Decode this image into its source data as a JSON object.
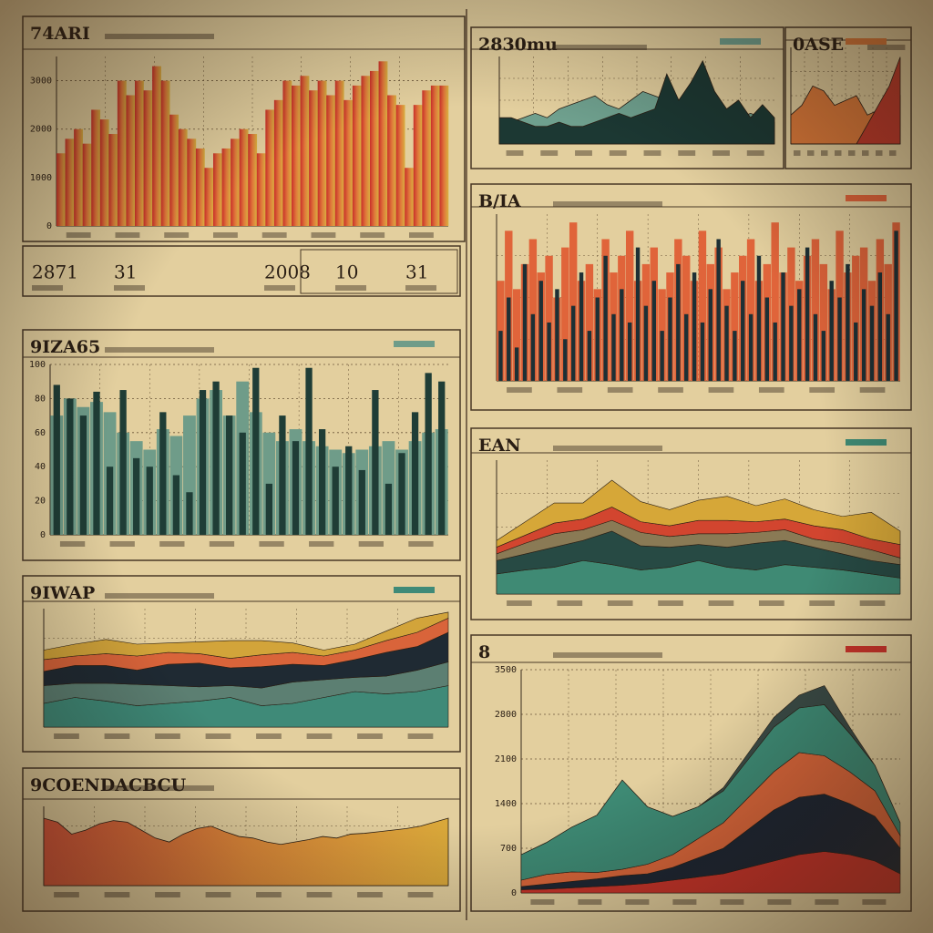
{
  "chart_data": [
    {
      "type": "bar",
      "title": "74ARI",
      "colors": [
        "#c9302a",
        "#e0773a",
        "#d9b040"
      ],
      "ylim": [
        0,
        3500
      ],
      "yticks": [
        0,
        1000,
        2000,
        3000
      ],
      "values": [
        1500,
        1800,
        2000,
        1700,
        2400,
        2200,
        1900,
        3000,
        2700,
        3000,
        2800,
        3300,
        3000,
        2300,
        2000,
        1800,
        1600,
        1200,
        1500,
        1600,
        1800,
        2000,
        1900,
        1500,
        2400,
        2600,
        3000,
        2900,
        3100,
        2800,
        3000,
        2700,
        3000,
        2600,
        2900,
        3100,
        3200,
        3400,
        2700,
        2500,
        1200,
        2500,
        2800,
        2900,
        2900
      ]
    },
    {
      "type": "bar",
      "title": "9IZA65",
      "ylim": [
        0,
        100
      ],
      "yticks": [
        0,
        20,
        40,
        60,
        80,
        100
      ],
      "series": [
        {
          "color": "#6f9c89",
          "values": [
            70,
            80,
            75,
            78,
            72,
            60,
            55,
            50,
            62,
            58,
            70,
            80,
            85,
            70,
            90,
            72,
            60,
            55,
            62,
            55,
            52,
            50,
            48,
            50,
            52,
            55,
            50,
            55,
            60,
            62
          ]
        },
        {
          "color": "#1f3d36",
          "values": [
            88,
            80,
            70,
            84,
            40,
            85,
            45,
            40,
            72,
            35,
            25,
            85,
            90,
            70,
            60,
            98,
            30,
            70,
            55,
            98,
            62,
            40,
            52,
            38,
            85,
            30,
            48,
            72,
            95,
            90
          ]
        }
      ]
    },
    {
      "type": "stackedarea",
      "title": "9IWAP",
      "ylim": [
        0,
        100
      ],
      "series": [
        {
          "color": "#3f8a78",
          "values": [
            20,
            25,
            22,
            18,
            20,
            22,
            25,
            18,
            20,
            25,
            30,
            28,
            30,
            35
          ]
        },
        {
          "color": "#5c7f72",
          "values": [
            15,
            12,
            15,
            18,
            15,
            12,
            10,
            15,
            18,
            15,
            12,
            15,
            18,
            20
          ]
        },
        {
          "color": "#1f2a33",
          "values": [
            12,
            15,
            15,
            12,
            18,
            20,
            15,
            18,
            15,
            12,
            15,
            20,
            20,
            25
          ]
        },
        {
          "color": "#d9643a",
          "values": [
            10,
            8,
            10,
            12,
            10,
            8,
            8,
            10,
            10,
            8,
            8,
            10,
            12,
            12
          ]
        },
        {
          "color": "#d2a43a",
          "values": [
            8,
            10,
            12,
            10,
            8,
            10,
            15,
            12,
            8,
            5,
            5,
            8,
            12,
            5
          ]
        }
      ]
    },
    {
      "type": "area",
      "title": "9COENDACBCU",
      "colors": [
        "#d9553a",
        "#e08a3a",
        "#d9a83a"
      ],
      "ylim": [
        0,
        100
      ],
      "values": [
        85,
        80,
        65,
        70,
        78,
        82,
        80,
        70,
        60,
        55,
        65,
        72,
        75,
        68,
        62,
        60,
        55,
        52,
        55,
        58,
        62,
        60,
        65,
        66,
        68,
        70,
        72,
        75,
        80,
        85
      ]
    },
    {
      "type": "area",
      "title": "2830mu",
      "ylim": [
        0,
        100
      ],
      "series": [
        {
          "color": "#6fa08e",
          "values": [
            20,
            25,
            30,
            35,
            30,
            40,
            45,
            50,
            55,
            45,
            40,
            50,
            60,
            55,
            50,
            45,
            40,
            35,
            30,
            25,
            30,
            35,
            30,
            25
          ]
        },
        {
          "color": "#1c3833",
          "values": [
            30,
            30,
            25,
            20,
            20,
            25,
            20,
            20,
            25,
            30,
            35,
            30,
            35,
            40,
            80,
            50,
            70,
            95,
            60,
            40,
            50,
            30,
            45,
            30
          ]
        }
      ]
    },
    {
      "type": "area",
      "title": "0ASE",
      "ylim": [
        0,
        100
      ],
      "series": [
        {
          "color": "#dd7a3a",
          "values": [
            30,
            40,
            60,
            55,
            40,
            45,
            50,
            30,
            35,
            40,
            50
          ]
        },
        {
          "color": "#c0392b",
          "values": [
            0,
            0,
            0,
            0,
            0,
            0,
            0,
            20,
            40,
            60,
            90
          ]
        }
      ]
    },
    {
      "type": "bar",
      "title": "B/IA",
      "ylim": [
        0,
        100
      ],
      "series": [
        {
          "color": "#e0643a",
          "values": [
            60,
            90,
            55,
            70,
            85,
            65,
            75,
            50,
            80,
            95,
            60,
            70,
            55,
            85,
            65,
            75,
            90,
            60,
            70,
            80,
            55,
            65,
            85,
            75,
            60,
            90,
            70,
            80,
            55,
            65,
            75,
            85,
            60,
            70,
            95,
            65,
            80,
            60,
            75,
            85,
            70,
            55,
            90,
            65,
            75,
            80,
            60,
            85,
            70,
            95
          ]
        },
        {
          "color": "#1d3035",
          "values": [
            30,
            50,
            20,
            70,
            40,
            60,
            35,
            55,
            25,
            45,
            65,
            30,
            50,
            75,
            40,
            55,
            35,
            80,
            45,
            60,
            30,
            50,
            70,
            40,
            65,
            35,
            55,
            85,
            45,
            30,
            60,
            40,
            75,
            50,
            35,
            65,
            45,
            55,
            80,
            40,
            30,
            60,
            50,
            70,
            35,
            55,
            45,
            65,
            40,
            90
          ]
        }
      ]
    },
    {
      "type": "stackedarea",
      "title": "EAN",
      "ylim": [
        0,
        100
      ],
      "series": [
        {
          "color": "#3f8a74",
          "values": [
            15,
            18,
            20,
            25,
            22,
            18,
            20,
            25,
            20,
            18,
            22,
            20,
            18,
            15,
            12
          ]
        },
        {
          "color": "#274a44",
          "values": [
            10,
            12,
            15,
            15,
            25,
            18,
            15,
            12,
            15,
            20,
            18,
            15,
            12,
            10,
            10
          ]
        },
        {
          "color": "#8a7a55",
          "values": [
            5,
            8,
            10,
            8,
            8,
            10,
            8,
            8,
            10,
            8,
            8,
            6,
            8,
            8,
            5
          ]
        },
        {
          "color": "#d2452f",
          "values": [
            5,
            6,
            8,
            8,
            10,
            8,
            8,
            10,
            10,
            8,
            8,
            10,
            10,
            8,
            10
          ]
        },
        {
          "color": "#d6a738",
          "values": [
            5,
            10,
            15,
            12,
            20,
            15,
            12,
            15,
            18,
            12,
            15,
            12,
            10,
            20,
            10
          ]
        }
      ]
    },
    {
      "type": "stackedarea",
      "title": "8",
      "ylim": [
        0,
        3500
      ],
      "yticks": [
        0,
        700,
        1400,
        2100,
        2800,
        3500
      ],
      "series": [
        {
          "color": "#c9342a",
          "values": [
            50,
            60,
            80,
            100,
            120,
            150,
            200,
            250,
            300,
            400,
            500,
            600,
            650,
            600,
            500,
            300
          ]
        },
        {
          "color": "#1d2633",
          "values": [
            50,
            80,
            100,
            120,
            150,
            150,
            200,
            300,
            400,
            600,
            800,
            900,
            900,
            800,
            700,
            400
          ]
        },
        {
          "color": "#d9663a",
          "values": [
            100,
            150,
            150,
            100,
            100,
            150,
            200,
            300,
            400,
            500,
            600,
            700,
            600,
            500,
            400,
            200
          ]
        },
        {
          "color": "#3e8a74",
          "values": [
            400,
            500,
            700,
            900,
            1400,
            900,
            600,
            500,
            500,
            600,
            700,
            700,
            800,
            600,
            400,
            200
          ]
        },
        {
          "color": "#3a4a45",
          "values": [
            0,
            0,
            0,
            0,
            0,
            0,
            0,
            0,
            50,
            100,
            150,
            200,
            300,
            100,
            0,
            0
          ]
        }
      ]
    }
  ],
  "stats": [
    "2871",
    "31",
    "2008",
    "10",
    "31"
  ]
}
